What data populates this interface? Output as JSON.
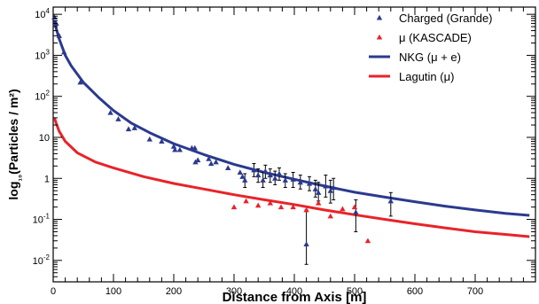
{
  "chart_data": {
    "type": "scatter",
    "xlabel": "Distance from Axis [m]",
    "ylabel": "log₁₀(Particles / m²)",
    "xlim": [
      0,
      800
    ],
    "ylim": [
      0.003,
      15000
    ],
    "yscale": "log",
    "x_ticks": [
      0,
      100,
      200,
      300,
      400,
      500,
      600,
      700
    ],
    "y_ticks": [
      {
        "value": 0.01,
        "mantissa": "10",
        "exp": "-2"
      },
      {
        "value": 0.1,
        "mantissa": "10",
        "exp": "-1"
      },
      {
        "value": 1,
        "mantissa": "1",
        "exp": ""
      },
      {
        "value": 10,
        "mantissa": "10",
        "exp": ""
      },
      {
        "value": 100,
        "mantissa": "10",
        "exp": "2"
      },
      {
        "value": 1000,
        "mantissa": "10",
        "exp": "3"
      },
      {
        "value": 10000,
        "mantissa": "10",
        "exp": "4"
      }
    ],
    "legend_position": "top-right",
    "legend": [
      {
        "label": "Charged (Grande)",
        "kind": "marker",
        "color": "#2b3a8f"
      },
      {
        "label": "μ (KASCADE)",
        "kind": "marker",
        "color": "#e8232a"
      },
      {
        "label": "NKG (μ + e)",
        "kind": "line",
        "color": "#2b3a8f"
      },
      {
        "label": "Lagutin (μ)",
        "kind": "line",
        "color": "#e8232a"
      }
    ],
    "series": [
      {
        "name": "Charged (Grande)",
        "kind": "points",
        "color": "#2b3a8f",
        "points": [
          {
            "x": 2,
            "y": 8500
          },
          {
            "x": 5,
            "y": 6000
          },
          {
            "x": 10,
            "y": 3000
          },
          {
            "x": 18,
            "y": 1200
          },
          {
            "x": 45,
            "y": 220
          },
          {
            "x": 95,
            "y": 40
          },
          {
            "x": 108,
            "y": 28
          },
          {
            "x": 125,
            "y": 16
          },
          {
            "x": 135,
            "y": 17
          },
          {
            "x": 160,
            "y": 9
          },
          {
            "x": 180,
            "y": 8
          },
          {
            "x": 200,
            "y": 6
          },
          {
            "x": 202,
            "y": 5
          },
          {
            "x": 210,
            "y": 5
          },
          {
            "x": 230,
            "y": 5.5
          },
          {
            "x": 235,
            "y": 5.5
          },
          {
            "x": 236,
            "y": 2.5
          },
          {
            "x": 240,
            "y": 2.8
          },
          {
            "x": 258,
            "y": 3
          },
          {
            "x": 262,
            "y": 2.3
          },
          {
            "x": 270,
            "y": 2.5
          },
          {
            "x": 290,
            "y": 1.8
          },
          {
            "x": 310,
            "y": 1.4
          },
          {
            "x": 314,
            "y": 1.1
          },
          {
            "x": 318,
            "y": 0.9,
            "err": [
              0.6,
              1.3
            ]
          },
          {
            "x": 333,
            "y": 1.6,
            "err": [
              1.1,
              2.3
            ]
          },
          {
            "x": 340,
            "y": 1.2,
            "err": [
              0.8,
              1.7
            ]
          },
          {
            "x": 348,
            "y": 0.9,
            "err": [
              0.6,
              1.4
            ]
          },
          {
            "x": 352,
            "y": 1.5,
            "err": [
              1.0,
              2.1
            ]
          },
          {
            "x": 360,
            "y": 1.2,
            "err": [
              0.8,
              1.7
            ]
          },
          {
            "x": 368,
            "y": 1.0,
            "err": [
              0.7,
              1.5
            ]
          },
          {
            "x": 375,
            "y": 1.3,
            "err": [
              0.9,
              1.8
            ]
          },
          {
            "x": 385,
            "y": 0.9,
            "err": [
              0.6,
              1.3
            ]
          },
          {
            "x": 398,
            "y": 0.95,
            "err": [
              0.6,
              1.4
            ]
          },
          {
            "x": 410,
            "y": 0.8,
            "err": [
              0.55,
              1.2
            ]
          },
          {
            "x": 420,
            "y": 0.025,
            "err": [
              0.008,
              0.17
            ]
          },
          {
            "x": 425,
            "y": 0.75,
            "err": [
              0.5,
              1.1
            ]
          },
          {
            "x": 435,
            "y": 0.55,
            "err": [
              0.35,
              0.9
            ]
          },
          {
            "x": 440,
            "y": 0.45,
            "err": [
              0.28,
              0.8
            ]
          },
          {
            "x": 452,
            "y": 0.65,
            "err": [
              0.35,
              1.2
            ]
          },
          {
            "x": 460,
            "y": 0.5,
            "err": [
              0.25,
              0.9
            ]
          },
          {
            "x": 465,
            "y": 0.6,
            "err": [
              0.3,
              1.0
            ]
          },
          {
            "x": 502,
            "y": 0.15,
            "err": [
              0.05,
              0.3
            ]
          },
          {
            "x": 560,
            "y": 0.28,
            "err": [
              0.12,
              0.45
            ]
          }
        ]
      },
      {
        "name": "μ (KASCADE)",
        "kind": "points",
        "color": "#e8232a",
        "points": [
          {
            "x": 300,
            "y": 0.2
          },
          {
            "x": 320,
            "y": 0.28
          },
          {
            "x": 340,
            "y": 0.22
          },
          {
            "x": 360,
            "y": 0.25
          },
          {
            "x": 378,
            "y": 0.2
          },
          {
            "x": 398,
            "y": 0.2
          },
          {
            "x": 420,
            "y": 0.17
          },
          {
            "x": 440,
            "y": 0.25
          },
          {
            "x": 460,
            "y": 0.12
          },
          {
            "x": 480,
            "y": 0.18
          },
          {
            "x": 500,
            "y": 0.2
          },
          {
            "x": 522,
            "y": 0.03
          }
        ]
      },
      {
        "name": "NKG (μ + e)",
        "kind": "curve",
        "color": "#2b3a8f",
        "points": [
          {
            "x": 2,
            "y": 7000
          },
          {
            "x": 5,
            "y": 4500
          },
          {
            "x": 10,
            "y": 2500
          },
          {
            "x": 20,
            "y": 1000
          },
          {
            "x": 30,
            "y": 550
          },
          {
            "x": 50,
            "y": 220
          },
          {
            "x": 75,
            "y": 95
          },
          {
            "x": 100,
            "y": 45
          },
          {
            "x": 130,
            "y": 22
          },
          {
            "x": 160,
            "y": 13
          },
          {
            "x": 200,
            "y": 7
          },
          {
            "x": 250,
            "y": 3.8
          },
          {
            "x": 300,
            "y": 2.2
          },
          {
            "x": 350,
            "y": 1.4
          },
          {
            "x": 400,
            "y": 0.95
          },
          {
            "x": 450,
            "y": 0.65
          },
          {
            "x": 500,
            "y": 0.46
          },
          {
            "x": 550,
            "y": 0.35
          },
          {
            "x": 600,
            "y": 0.27
          },
          {
            "x": 650,
            "y": 0.21
          },
          {
            "x": 700,
            "y": 0.17
          },
          {
            "x": 750,
            "y": 0.14
          },
          {
            "x": 790,
            "y": 0.125
          }
        ]
      },
      {
        "name": "Lagutin (μ)",
        "kind": "curve",
        "color": "#e8232a",
        "points": [
          {
            "x": 2,
            "y": 30
          },
          {
            "x": 5,
            "y": 22
          },
          {
            "x": 10,
            "y": 14
          },
          {
            "x": 20,
            "y": 8
          },
          {
            "x": 40,
            "y": 4.2
          },
          {
            "x": 70,
            "y": 2.5
          },
          {
            "x": 100,
            "y": 1.8
          },
          {
            "x": 150,
            "y": 1.1
          },
          {
            "x": 200,
            "y": 0.75
          },
          {
            "x": 250,
            "y": 0.55
          },
          {
            "x": 300,
            "y": 0.4
          },
          {
            "x": 350,
            "y": 0.3
          },
          {
            "x": 400,
            "y": 0.23
          },
          {
            "x": 450,
            "y": 0.17
          },
          {
            "x": 500,
            "y": 0.13
          },
          {
            "x": 550,
            "y": 0.1
          },
          {
            "x": 600,
            "y": 0.078
          },
          {
            "x": 650,
            "y": 0.062
          },
          {
            "x": 700,
            "y": 0.05
          },
          {
            "x": 750,
            "y": 0.043
          },
          {
            "x": 790,
            "y": 0.038
          }
        ]
      }
    ]
  }
}
